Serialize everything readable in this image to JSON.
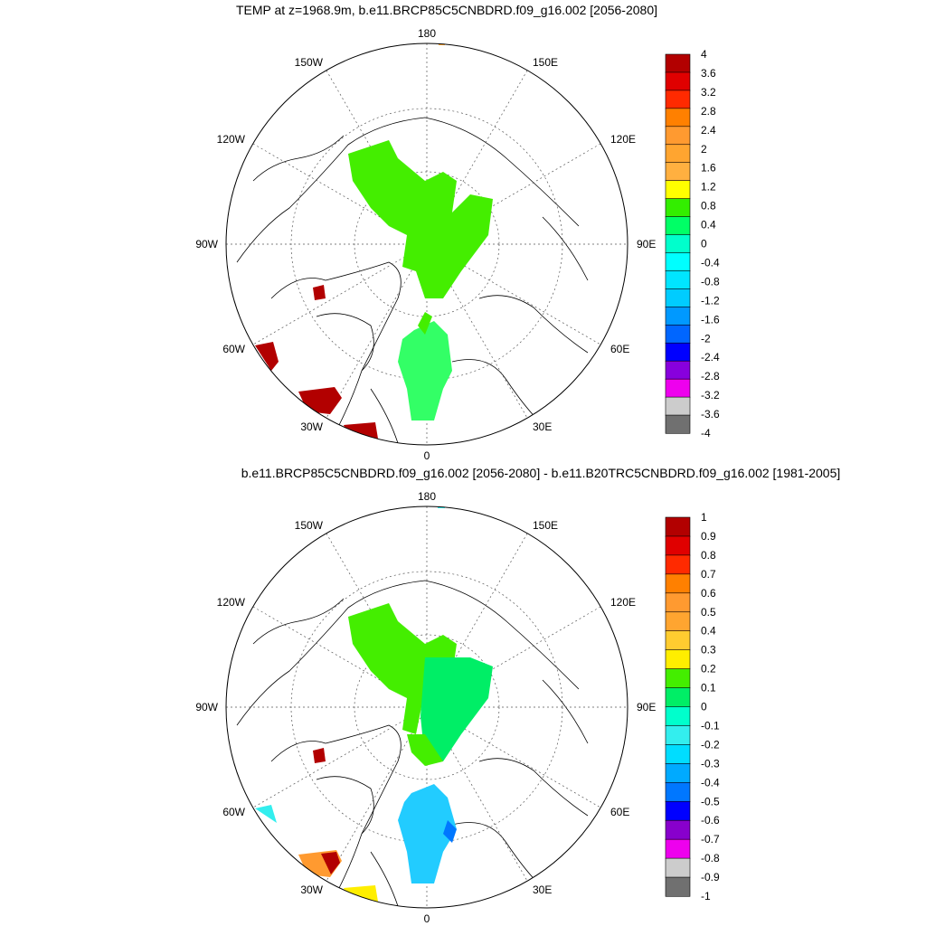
{
  "panels": [
    {
      "title": "TEMP at z=1968.9m, b.e11.BRCP85C5CNBDRD.f09_g16.002 [2056-2080]",
      "longitude_labels": {
        "top": "180",
        "bottom": "0",
        "left": "90W",
        "right": "90E",
        "upper_left_1": "150W",
        "upper_left_2": "120W",
        "lower_left_1": "60W",
        "lower_left_2": "30W",
        "upper_right_1": "150E",
        "upper_right_2": "120E",
        "lower_right_1": "60E",
        "lower_right_2": "30E"
      },
      "colorbar": {
        "levels": [
          "4",
          "3.6",
          "3.2",
          "2.8",
          "2.4",
          "2",
          "1.6",
          "1.2",
          "0.8",
          "0.4",
          "0",
          "-0.4",
          "-0.8",
          "-1.2",
          "-1.6",
          "-2",
          "-2.4",
          "-2.8",
          "-3.2",
          "-3.6",
          "-4"
        ],
        "colors": [
          "#b20000",
          "#e00000",
          "#ff2a00",
          "#ff8000",
          "#ff9a30",
          "#ffa530",
          "#ffb040",
          "#ffff00",
          "#33ee00",
          "#00ff66",
          "#00ffcc",
          "#00ffff",
          "#00e5ff",
          "#00ccff",
          "#0099ff",
          "#0066ff",
          "#0000ff",
          "#8800dd",
          "#ee00ee",
          "#cccccc",
          "#707070"
        ]
      },
      "field_colors": {
        "land_field": "#44ee00",
        "svalbard_field": "#33ff66",
        "hot_spots": "#b20000"
      }
    },
    {
      "title": "b.e11.BRCP85C5CNBDRD.f09_g16.002 [2056-2080] - b.e11.B20TRC5CNBDRD.f09_g16.002 [1981-2005]",
      "longitude_labels": {
        "top": "180",
        "bottom": "0",
        "left": "90W",
        "right": "90E",
        "upper_left_1": "150W",
        "upper_left_2": "120W",
        "lower_left_1": "60W",
        "lower_left_2": "30W",
        "upper_right_1": "150E",
        "upper_right_2": "120E",
        "lower_right_1": "60E",
        "lower_right_2": "30E"
      },
      "colorbar": {
        "levels": [
          "1",
          "0.9",
          "0.8",
          "0.7",
          "0.6",
          "0.5",
          "0.4",
          "0.3",
          "0.2",
          "0.1",
          "0",
          "-0.1",
          "-0.2",
          "-0.3",
          "-0.4",
          "-0.5",
          "-0.6",
          "-0.7",
          "-0.8",
          "-0.9",
          "-1"
        ],
        "colors": [
          "#b20000",
          "#e00000",
          "#ff2a00",
          "#ff8000",
          "#ff9a30",
          "#ffa530",
          "#ffcc30",
          "#ffee00",
          "#44ee00",
          "#00ee66",
          "#00ffcc",
          "#33eeee",
          "#00ddff",
          "#00aaff",
          "#0077ff",
          "#0000ff",
          "#8800cc",
          "#ee00ee",
          "#cccccc",
          "#707070"
        ]
      },
      "field_colors": {
        "land_field": "#44ee00",
        "eurasia_field": "#00ee66",
        "svalbard_field": "#22ccff",
        "hot_spots": "#b20000"
      }
    }
  ]
}
